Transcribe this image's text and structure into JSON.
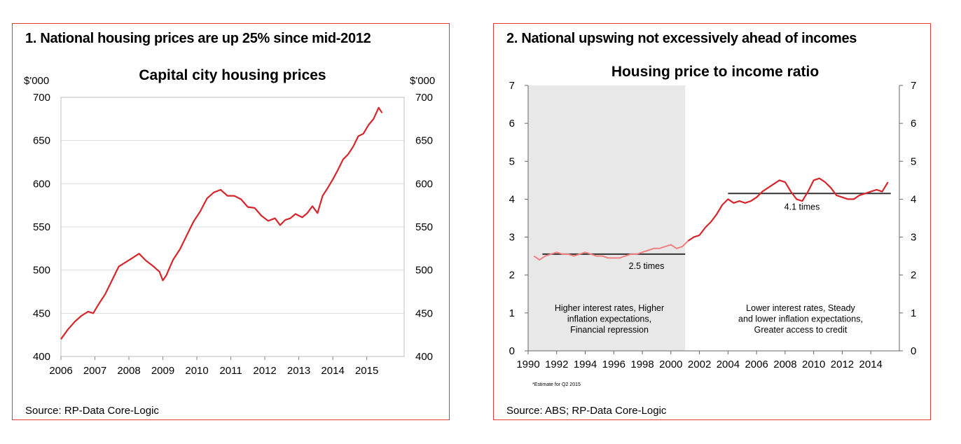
{
  "colors": {
    "border": "#e03a3a",
    "series": "#d7262b",
    "series_light": "#f08080",
    "average": "#333333",
    "shade": "#e8e8e8",
    "grid": "#dcdcdc"
  },
  "panel1": {
    "heading": "1. National housing prices are up 25% since mid-2012",
    "source": "Source: RP-Data Core-Logic"
  },
  "panel2": {
    "heading": "2. National upswing not excessively ahead of incomes",
    "source": "Source: ABS;  RP-Data Core-Logic",
    "footnote": "*Estimate for Q2 2015",
    "annotation_left": [
      "Higher interest rates, Higher",
      "inflation expectations,",
      "Financial repression"
    ],
    "annotation_right": [
      "Lower interest rates, Steady",
      "and lower inflation expectations,",
      "Greater access to credit"
    ],
    "avg_label_1": "2.5 times",
    "avg_label_2": "4.1 times"
  },
  "chart_data": [
    {
      "type": "line",
      "title": "Capital city housing prices",
      "ylabel_left": "$'000",
      "ylabel_right": "$'000",
      "ylim": [
        400,
        700
      ],
      "yticks": [
        400,
        450,
        500,
        550,
        600,
        650,
        700
      ],
      "xlim": [
        2006,
        2016.1
      ],
      "xticks": [
        2006,
        2007,
        2008,
        2009,
        2010,
        2011,
        2012,
        2013,
        2014,
        2015
      ],
      "grid": true,
      "series": [
        {
          "x": [
            2006.0,
            2006.2,
            2006.4,
            2006.6,
            2006.8,
            2006.95,
            2007.1,
            2007.3,
            2007.5,
            2007.7,
            2007.9,
            2008.1,
            2008.3,
            2008.5,
            2008.7,
            2008.9,
            2009.0,
            2009.1,
            2009.3,
            2009.5,
            2009.7,
            2009.9,
            2010.1,
            2010.3,
            2010.5,
            2010.7,
            2010.9,
            2011.1,
            2011.3,
            2011.5,
            2011.7,
            2011.9,
            2012.1,
            2012.3,
            2012.45,
            2012.6,
            2012.75,
            2012.9,
            2013.1,
            2013.25,
            2013.4,
            2013.55,
            2013.7,
            2013.85,
            2014.0,
            2014.15,
            2014.3,
            2014.45,
            2014.6,
            2014.75,
            2014.9,
            2015.05,
            2015.2,
            2015.35,
            2015.45
          ],
          "values": [
            420,
            431,
            440,
            447,
            452,
            450,
            460,
            472,
            488,
            504,
            509,
            514,
            519,
            511,
            505,
            498,
            488,
            494,
            512,
            524,
            540,
            556,
            568,
            583,
            590,
            593,
            586,
            586,
            582,
            573,
            572,
            563,
            557,
            560,
            552,
            558,
            560,
            565,
            561,
            566,
            574,
            566,
            586,
            595,
            605,
            616,
            628,
            634,
            643,
            655,
            658,
            668,
            675,
            688,
            682
          ]
        }
      ]
    },
    {
      "type": "line",
      "title": "Housing price to income ratio",
      "ylim": [
        0,
        7
      ],
      "yticks": [
        0,
        1,
        2,
        3,
        4,
        5,
        6,
        7
      ],
      "xlim": [
        1990,
        2016
      ],
      "xticks": [
        1990,
        1992,
        1994,
        1996,
        1998,
        2000,
        2002,
        2004,
        2006,
        2008,
        2010,
        2012,
        2014
      ],
      "shaded_range": [
        1990,
        2001
      ],
      "averages": [
        {
          "label": "2.5 times",
          "value": 2.55,
          "x": [
            1991,
            2001
          ]
        },
        {
          "label": "4.1 times",
          "value": 4.15,
          "x": [
            2004,
            2015.4
          ]
        }
      ],
      "series": [
        {
          "x": [
            1990.4,
            1990.8,
            1991.2,
            1991.6,
            1992.0,
            1992.4,
            1992.8,
            1993.2,
            1993.6,
            1994.0,
            1994.4,
            1994.8,
            1995.2,
            1995.6,
            1996.0,
            1996.4,
            1996.8,
            1997.2,
            1997.6,
            1998.0,
            1998.4,
            1998.8,
            1999.2,
            1999.6,
            2000.0,
            2000.4,
            2000.8,
            2001.2,
            2001.6,
            2002.0,
            2002.4,
            2002.8,
            2003.2,
            2003.6,
            2004.0,
            2004.4,
            2004.8,
            2005.2,
            2005.6,
            2006.0,
            2006.4,
            2006.8,
            2007.2,
            2007.6,
            2008.0,
            2008.4,
            2008.8,
            2009.2,
            2009.6,
            2010.0,
            2010.4,
            2010.8,
            2011.2,
            2011.6,
            2012.0,
            2012.4,
            2012.8,
            2013.2,
            2013.6,
            2014.0,
            2014.4,
            2014.8,
            2015.2
          ],
          "values": [
            2.5,
            2.4,
            2.5,
            2.55,
            2.6,
            2.55,
            2.55,
            2.5,
            2.55,
            2.6,
            2.55,
            2.5,
            2.5,
            2.45,
            2.45,
            2.45,
            2.5,
            2.55,
            2.55,
            2.6,
            2.65,
            2.7,
            2.7,
            2.75,
            2.8,
            2.7,
            2.75,
            2.9,
            3.0,
            3.05,
            3.25,
            3.4,
            3.6,
            3.85,
            4.0,
            3.9,
            3.95,
            3.9,
            3.95,
            4.05,
            4.2,
            4.3,
            4.4,
            4.5,
            4.45,
            4.2,
            4.0,
            3.95,
            4.2,
            4.5,
            4.55,
            4.45,
            4.3,
            4.1,
            4.05,
            4.0,
            4.0,
            4.1,
            4.15,
            4.2,
            4.25,
            4.2,
            4.45
          ]
        }
      ]
    }
  ]
}
